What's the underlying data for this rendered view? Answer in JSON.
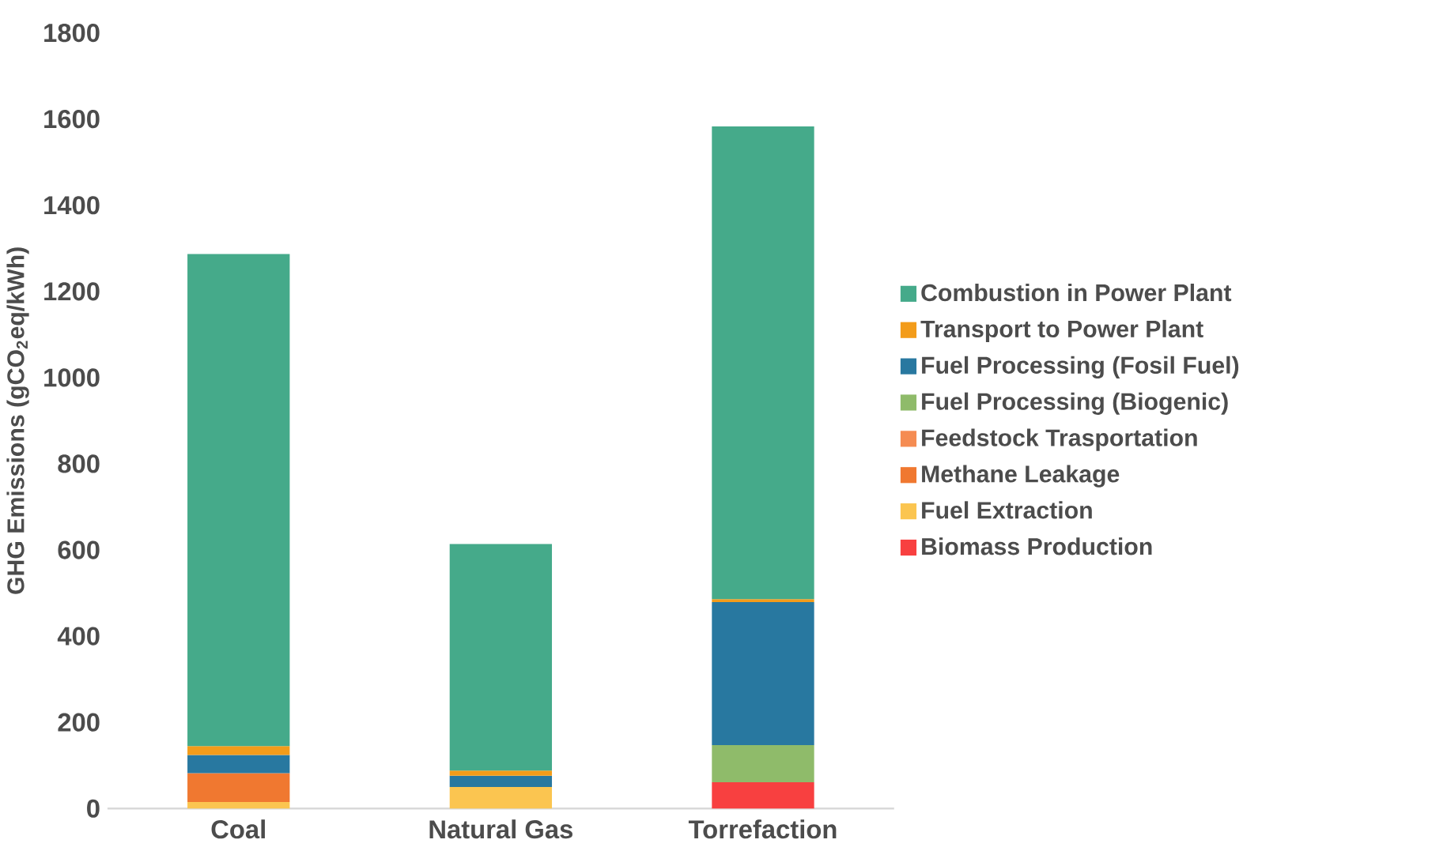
{
  "chart_data": {
    "type": "bar",
    "stacked": true,
    "ylabel": "GHG Emissions (gCO$_{2}$eq/kWh)",
    "categories": [
      "Coal",
      "Natural Gas",
      "Torrefaction"
    ],
    "series": [
      {
        "name": "Biomass Production",
        "color": "#f84040",
        "values": [
          null,
          null,
          61
        ]
      },
      {
        "name": "Fuel Extraction",
        "color": "#fbc550",
        "values": [
          15,
          50,
          null
        ]
      },
      {
        "name": "Methane Leakage",
        "color": "#f07830",
        "values": [
          67,
          null,
          null
        ]
      },
      {
        "name": "Feedstock Trasportation",
        "color": "#f58c52",
        "values": [
          null,
          null,
          null
        ]
      },
      {
        "name": "Fuel Processing (Biogenic)",
        "color": "#8fbb6a",
        "values": [
          null,
          null,
          86
        ]
      },
      {
        "name": "Fuel Processing (Fosil Fuel)",
        "color": "#2878a0",
        "values": [
          42,
          26,
          332
        ]
      },
      {
        "name": "Transport to Power Plant",
        "color": "#f39c1a",
        "values": [
          21,
          12,
          7
        ]
      },
      {
        "name": "Combustion in Power Plant",
        "color": "#45aa8a",
        "values": [
          1142,
          526,
          1097
        ]
      }
    ],
    "ylim": [
      0,
      1800
    ],
    "yticks": [
      0,
      200,
      400,
      600,
      800,
      1000,
      1200,
      1400,
      1600,
      1800
    ],
    "legend": "right"
  }
}
